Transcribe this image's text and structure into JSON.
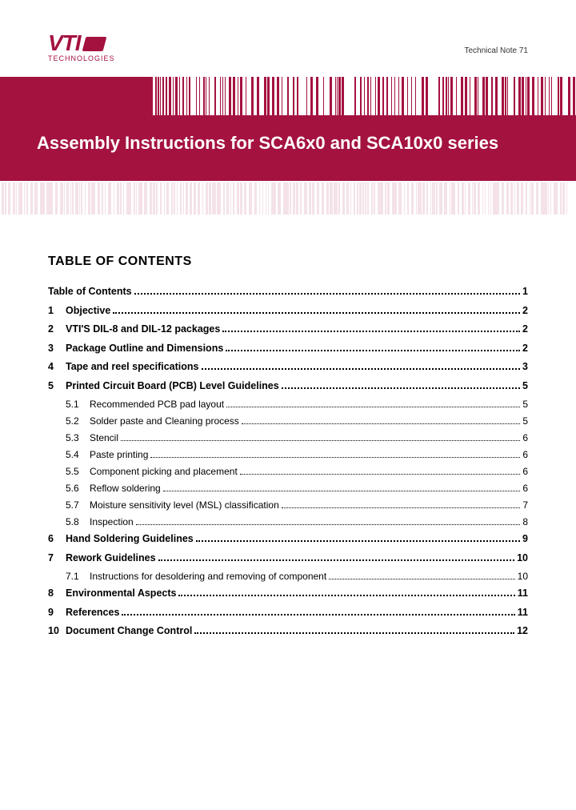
{
  "brand": {
    "name": "VTI",
    "sub": "TECHNOLOGIES",
    "color": "#a4123f"
  },
  "techNote": "Technical Note 71",
  "title": "Assembly Instructions for SCA6x0 and SCA10x0 series",
  "tocHeading": "TABLE OF CONTENTS",
  "toc": [
    {
      "num": "",
      "label": "Table of Contents",
      "page": "1",
      "level": 0
    },
    {
      "num": "1",
      "label": "Objective",
      "page": "2",
      "level": 0
    },
    {
      "num": "2",
      "label": "VTI'S DIL-8 and DIL-12 packages",
      "page": "2",
      "level": 0
    },
    {
      "num": "3",
      "label": "Package Outline and Dimensions",
      "page": "2",
      "level": 0
    },
    {
      "num": "4",
      "label": "Tape and reel specifications",
      "page": "3",
      "level": 0
    },
    {
      "num": "5",
      "label": "Printed Circuit Board (PCB) Level Guidelines",
      "page": "5",
      "level": 0
    },
    {
      "num": "5.1",
      "label": "Recommended PCB pad layout",
      "page": "5",
      "level": 1
    },
    {
      "num": "5.2",
      "label": "Solder paste and Cleaning process",
      "page": "5",
      "level": 1
    },
    {
      "num": "5.3",
      "label": "Stencil",
      "page": "6",
      "level": 1
    },
    {
      "num": "5.4",
      "label": "Paste printing",
      "page": "6",
      "level": 1
    },
    {
      "num": "5.5",
      "label": "Component picking and placement",
      "page": "6",
      "level": 1
    },
    {
      "num": "5.6",
      "label": "Reflow soldering",
      "page": "6",
      "level": 1
    },
    {
      "num": "5.7",
      "label": "Moisture sensitivity level (MSL) classification",
      "page": "7",
      "level": 1
    },
    {
      "num": "5.8",
      "label": "Inspection",
      "page": "8",
      "level": 1
    },
    {
      "num": "6",
      "label": "Hand Soldering Guidelines",
      "page": "9",
      "level": 0
    },
    {
      "num": "7",
      "label": "Rework Guidelines",
      "page": "10",
      "level": 0
    },
    {
      "num": "7.1",
      "label": "Instructions for desoldering and removing of component",
      "page": "10",
      "level": 1
    },
    {
      "num": "8",
      "label": "Environmental Aspects",
      "page": "11",
      "level": 0
    },
    {
      "num": "9",
      "label": "References",
      "page": "11",
      "level": 0
    },
    {
      "num": "10",
      "label": "Document Change Control",
      "page": "12",
      "level": 0
    }
  ],
  "colors": {
    "brand": "#a4123f",
    "text": "#000000",
    "bg": "#ffffff"
  }
}
